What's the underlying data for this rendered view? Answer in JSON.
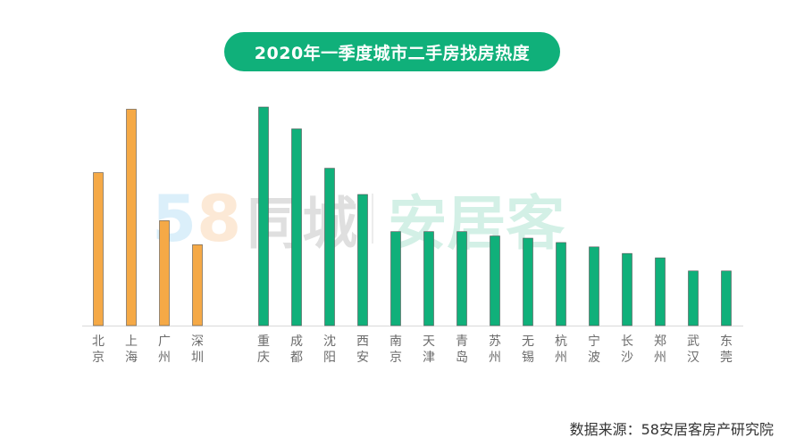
{
  "title": "2020年一季度城市二手房找房热度",
  "source": "数据来源：58安居客房产研究院",
  "watermark": {
    "part1": "5",
    "part2": "8",
    "part3": "同城",
    "part4": "安居客"
  },
  "colors": {
    "tier1": "#f5a946",
    "tier2": "#10b07a",
    "title_bg": "#10b07a"
  },
  "chart_data": {
    "type": "bar",
    "title": "2020年一季度城市二手房找房热度",
    "xlabel": "",
    "ylabel": "",
    "ylim": [
      0,
      100
    ],
    "grid": false,
    "legend": "none",
    "categories": [
      "北京",
      "上海",
      "广州",
      "深圳",
      "重庆",
      "成都",
      "沈阳",
      "西安",
      "南京",
      "天津",
      "青岛",
      "苏州",
      "无锡",
      "杭州",
      "宁波",
      "长沙",
      "郑州",
      "武汉",
      "东莞"
    ],
    "groups": [
      "tier1",
      "tier1",
      "tier1",
      "tier1",
      "tier2",
      "tier2",
      "tier2",
      "tier2",
      "tier2",
      "tier2",
      "tier2",
      "tier2",
      "tier2",
      "tier2",
      "tier2",
      "tier2",
      "tier2",
      "tier2",
      "tier2"
    ],
    "values": [
      70,
      99,
      48,
      37,
      100,
      90,
      72,
      60,
      43,
      43,
      43,
      41,
      40,
      38,
      36,
      33,
      31,
      25,
      25
    ]
  }
}
